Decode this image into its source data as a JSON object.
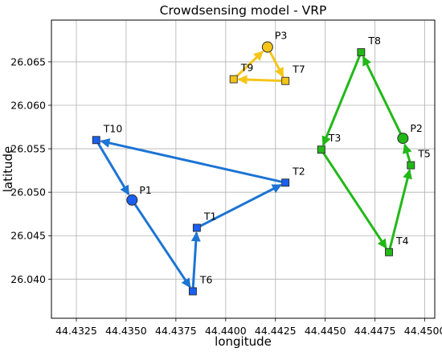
{
  "chart_data": {
    "type": "scatter",
    "title": "Crowdsensing model - VRP",
    "xlabel": "longitude",
    "ylabel": "latitude",
    "xlim": [
      44.43125,
      44.4505
    ],
    "ylim": [
      26.0355,
      26.0698
    ],
    "x_ticks": [
      "44.4325",
      "44.4350",
      "44.4375",
      "44.4400",
      "44.4425",
      "44.4450",
      "44.4475",
      "44.4500"
    ],
    "x_tick_values": [
      44.4325,
      44.435,
      44.4375,
      44.44,
      44.4425,
      44.445,
      44.4475,
      44.45
    ],
    "y_ticks": [
      "26.040",
      "26.045",
      "26.050",
      "26.055",
      "26.060",
      "26.065"
    ],
    "y_tick_values": [
      26.04,
      26.045,
      26.05,
      26.055,
      26.06,
      26.065
    ],
    "grid": true,
    "colors": {
      "blue": "#1c74d4",
      "blue_marker": "#1a5ff0",
      "yellow": "#f5c518",
      "green": "#22b818",
      "edge": "#2a2a2a"
    },
    "nodes": [
      {
        "label": "P1",
        "kind": "depot",
        "x": 44.4353,
        "y": 26.0491,
        "route": "blue"
      },
      {
        "label": "T1",
        "kind": "task",
        "x": 44.43855,
        "y": 26.0459,
        "route": "blue"
      },
      {
        "label": "T2",
        "kind": "task",
        "x": 44.443,
        "y": 26.0511,
        "route": "blue"
      },
      {
        "label": "T6",
        "kind": "task",
        "x": 44.43835,
        "y": 26.0386,
        "route": "blue"
      },
      {
        "label": "T10",
        "kind": "task",
        "x": 44.4335,
        "y": 26.056,
        "route": "blue"
      },
      {
        "label": "P3",
        "kind": "depot",
        "x": 44.4421,
        "y": 26.0667,
        "route": "yellow"
      },
      {
        "label": "T7",
        "kind": "task",
        "x": 44.443,
        "y": 26.0628,
        "route": "yellow"
      },
      {
        "label": "T9",
        "kind": "task",
        "x": 44.4404,
        "y": 26.063,
        "route": "yellow"
      },
      {
        "label": "P2",
        "kind": "depot",
        "x": 44.4489,
        "y": 26.0562,
        "route": "green"
      },
      {
        "label": "T3",
        "kind": "task",
        "x": 44.4448,
        "y": 26.0549,
        "route": "green"
      },
      {
        "label": "T4",
        "kind": "task",
        "x": 44.4482,
        "y": 26.0431,
        "route": "green"
      },
      {
        "label": "T5",
        "kind": "task",
        "x": 44.4493,
        "y": 26.0531,
        "route": "green"
      },
      {
        "label": "T8",
        "kind": "task",
        "x": 44.4468,
        "y": 26.0661,
        "route": "green"
      }
    ],
    "series": [
      {
        "color": "blue",
        "edges": [
          [
            "P1",
            "T6"
          ],
          [
            "T6",
            "T1"
          ],
          [
            "T1",
            "T2"
          ],
          [
            "T2",
            "T10"
          ],
          [
            "T10",
            "P1"
          ]
        ]
      },
      {
        "color": "yellow",
        "edges": [
          [
            "P3",
            "T7"
          ],
          [
            "T7",
            "T9"
          ],
          [
            "T9",
            "P3"
          ]
        ]
      },
      {
        "color": "green",
        "edges": [
          [
            "P2",
            "T8"
          ],
          [
            "T8",
            "T3"
          ],
          [
            "T3",
            "T4"
          ],
          [
            "T4",
            "T5"
          ],
          [
            "T5",
            "P2"
          ]
        ]
      }
    ]
  }
}
